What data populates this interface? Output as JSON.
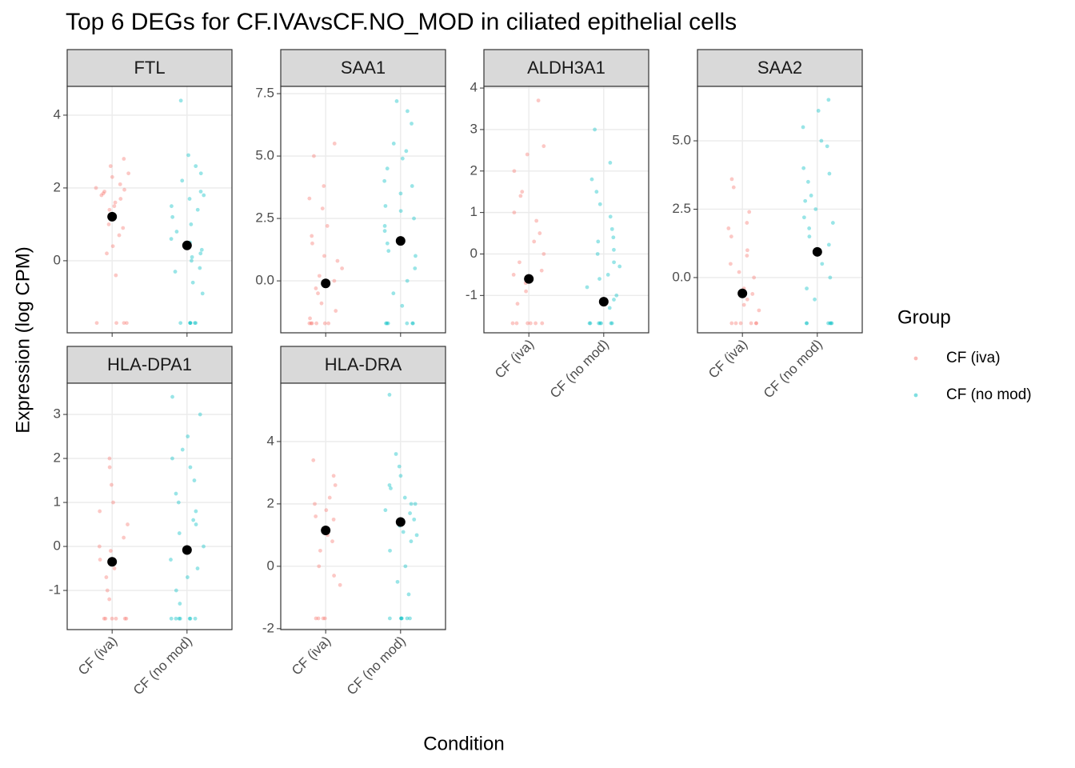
{
  "chart_data": {
    "type": "strip",
    "title": "Top 6 DEGs for CF.IVAvsCF.NO_MOD in ciliated epithelial cells",
    "x_label": "Condition",
    "y_label": "Expression (log CPM)",
    "legend_title": "Group",
    "categories": [
      "CF (iva)",
      "CF (no mod)"
    ],
    "series": [
      {
        "name": "CF (iva)",
        "color": "#F8766D"
      },
      {
        "name": "CF (no mod)",
        "color": "#00BFC4"
      }
    ],
    "mean_color": "#000000",
    "grid": true,
    "panels": [
      {
        "title": "FTL",
        "ylim": [
          -1.98,
          4.79
        ],
        "yticks": [
          0,
          2,
          4
        ],
        "groups": [
          {
            "mean": 1.21,
            "values": [
              1.8,
              2.1,
              1.5,
              2.6,
              1.9,
              0.9,
              1.7,
              2.3,
              1.2,
              0.4,
              2.0,
              1.6,
              -0.4,
              1.0,
              2.8,
              0.2,
              1.4,
              1.85,
              2.4,
              0.7,
              1.95,
              -1.71,
              -1.71,
              -1.71,
              -1.71
            ]
          },
          {
            "mean": 0.42,
            "values": [
              0.5,
              1.5,
              2.2,
              -0.2,
              0.8,
              1.9,
              0.1,
              2.6,
              1.2,
              -0.6,
              0.3,
              1.7,
              2.9,
              0.0,
              1.0,
              -0.9,
              2.4,
              0.6,
              1.4,
              0.2,
              4.4,
              -0.3,
              1.8,
              -1.71,
              -1.71,
              -1.71,
              -1.71,
              -1.71,
              -1.71
            ]
          }
        ]
      },
      {
        "title": "SAA1",
        "ylim": [
          -2.08,
          7.79
        ],
        "yticks": [
          {
            "value": 0,
            "label": "0.0"
          },
          {
            "value": 2.5,
            "label": "2.5"
          },
          {
            "value": 5,
            "label": "5.0"
          },
          {
            "value": 7.5,
            "label": "7.5"
          }
        ],
        "groups": [
          {
            "mean": -0.1,
            "values": [
              -0.5,
              0.5,
              1.5,
              3.8,
              -1.2,
              2.9,
              0.2,
              5.0,
              -0.9,
              1.0,
              3.3,
              -0.3,
              2.2,
              0.8,
              5.5,
              -1.5,
              1.8,
              0.0,
              -1.7,
              -1.7,
              -1.7,
              -1.7,
              -1.7,
              -1.7
            ]
          },
          {
            "mean": 1.6,
            "values": [
              2.5,
              4.5,
              1.0,
              5.5,
              3.0,
              0.0,
              6.3,
              2.0,
              -1.0,
              3.8,
              4.9,
              1.5,
              7.2,
              2.8,
              0.5,
              5.2,
              3.5,
              -0.5,
              4.0,
              2.2,
              6.8,
              1.2,
              -1.7,
              -1.7,
              -1.7,
              -1.7,
              -1.7,
              -1.7
            ]
          }
        ]
      },
      {
        "title": "ALDH3A1",
        "ylim": [
          -1.9,
          4.04
        ],
        "yticks": [
          -1,
          0,
          1,
          2,
          3,
          4
        ],
        "groups": [
          {
            "mean": -0.6,
            "values": [
              -0.5,
              0.3,
              1.5,
              -1.2,
              2.6,
              0.8,
              -0.2,
              3.7,
              0.0,
              2.0,
              -0.9,
              1.0,
              0.5,
              -0.7,
              2.4,
              1.4,
              -0.4,
              -1.67,
              -1.67,
              -1.67,
              -1.67,
              -1.67,
              -1.67
            ]
          },
          {
            "mean": -1.15,
            "values": [
              -0.5,
              0.3,
              -1.1,
              1.2,
              0.0,
              -0.8,
              1.8,
              -0.3,
              0.6,
              3.0,
              -1.3,
              0.9,
              -0.6,
              2.2,
              0.1,
              -1.0,
              0.4,
              -0.2,
              1.5,
              -1.67,
              -1.67,
              -1.67,
              -1.67,
              -1.67,
              -1.67,
              -1.67
            ]
          }
        ]
      },
      {
        "title": "SAA2",
        "ylim": [
          -2.02,
          6.99
        ],
        "yticks": [
          {
            "value": 0,
            "label": "0.0"
          },
          {
            "value": 2.5,
            "label": "2.5"
          },
          {
            "value": 5,
            "label": "5.0"
          }
        ],
        "groups": [
          {
            "mean": -0.58,
            "values": [
              -0.8,
              0.5,
              1.5,
              -1.2,
              2.4,
              0.0,
              3.3,
              -0.4,
              1.0,
              0.8,
              -1.0,
              3.6,
              2.0,
              0.2,
              -0.6,
              1.8,
              -1.67,
              -1.67,
              -1.67,
              -1.67,
              -1.67,
              -1.67
            ]
          },
          {
            "mean": 0.94,
            "values": [
              2.5,
              4.0,
              1.0,
              5.5,
              3.0,
              0.0,
              2.0,
              4.8,
              -0.8,
              3.5,
              1.5,
              6.5,
              2.8,
              0.5,
              5.0,
              1.8,
              -0.4,
              3.8,
              2.2,
              6.1,
              1.2,
              -1.67,
              -1.67,
              -1.67,
              -1.67,
              -1.67,
              -1.67
            ]
          }
        ]
      },
      {
        "title": "HLA-DPA1",
        "ylim": [
          -1.89,
          3.71
        ],
        "yticks": [
          -1,
          0,
          1,
          2,
          3
        ],
        "groups": [
          {
            "mean": -0.35,
            "values": [
              -0.5,
              0.2,
              1.4,
              -1.0,
              0.8,
              -0.3,
              2.0,
              0.0,
              -0.7,
              1.8,
              0.5,
              -1.2,
              -0.1,
              1.0,
              -0.4,
              -1.64,
              -1.64,
              -1.64,
              -1.64,
              -1.64,
              -1.64
            ]
          },
          {
            "mean": -0.08,
            "values": [
              0.5,
              1.5,
              -0.5,
              2.2,
              0.0,
              1.0,
              -1.0,
              1.8,
              0.3,
              -0.3,
              2.5,
              0.8,
              3.0,
              -1.3,
              1.2,
              -0.1,
              3.4,
              0.6,
              2.0,
              -0.7,
              -1.64,
              -1.64,
              -1.64,
              -1.64,
              -1.64,
              -1.64,
              -1.64
            ]
          }
        ]
      },
      {
        "title": "HLA-DRA",
        "ylim": [
          -2.03,
          5.87
        ],
        "yticks": [
          -2,
          0,
          2,
          4
        ],
        "groups": [
          {
            "mean": 1.15,
            "values": [
              1.5,
              2.0,
              0.8,
              2.6,
              1.2,
              -0.3,
              1.8,
              3.4,
              0.5,
              2.2,
              1.0,
              0.0,
              2.9,
              1.6,
              -0.6,
              -1.67,
              -1.67,
              -1.67,
              -1.67
            ]
          },
          {
            "mean": 1.42,
            "values": [
              1.5,
              2.5,
              0.5,
              2.0,
              3.2,
              1.0,
              -0.5,
              1.8,
              2.9,
              0.0,
              2.2,
              1.3,
              -0.9,
              3.6,
              1.7,
              0.8,
              2.6,
              5.5,
              1.1,
              2.0,
              -1.67,
              -1.67,
              -1.67,
              -1.67,
              -1.67,
              -1.67
            ]
          }
        ]
      }
    ]
  }
}
